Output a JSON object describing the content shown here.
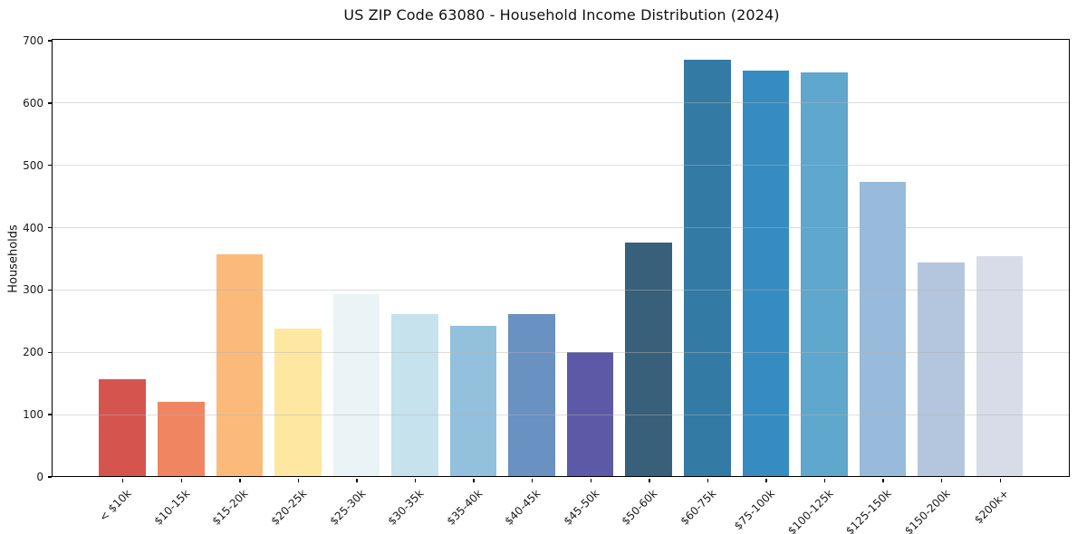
{
  "chart": {
    "title": "US ZIP Code 63080 - Household Income Distribution (2024)",
    "ylabel": "Households"
  },
  "chart_data": {
    "type": "bar",
    "title": "US ZIP Code 63080 - Household Income Distribution (2024)",
    "xlabel": "",
    "ylabel": "Households",
    "ylim": [
      0,
      700
    ],
    "ytick_step": 100,
    "ytick_labels": [
      "0",
      "100",
      "200",
      "300",
      "400",
      "500",
      "600",
      "700"
    ],
    "grid": "horizontal-light",
    "legend": "none",
    "categories": [
      "< $10k",
      "$10-15k",
      "$15-20k",
      "$20-25k",
      "$25-30k",
      "$30-35k",
      "$35-40k",
      "$40-45k",
      "$45-50k",
      "$50-60k",
      "$60-75k",
      "$75-100k",
      "$100-125k",
      "$125-150k",
      "$150-200k",
      "$200k+"
    ],
    "values": [
      156,
      120,
      357,
      238,
      292,
      261,
      242,
      260,
      200,
      375,
      668,
      651,
      648,
      472,
      343,
      353
    ],
    "bar_colors": [
      "#d6544e",
      "#f08562",
      "#fcba7a",
      "#fde7a1",
      "#eaf3f5",
      "#c5e2ed",
      "#92c0dd",
      "#6991c2",
      "#5c5aa7",
      "#38607a",
      "#337aa5",
      "#368cc0",
      "#5fa7cc",
      "#98badb",
      "#b3c6dd",
      "#d8dce9"
    ],
    "spine_color": "#000000",
    "background_color": "#ffffff"
  }
}
